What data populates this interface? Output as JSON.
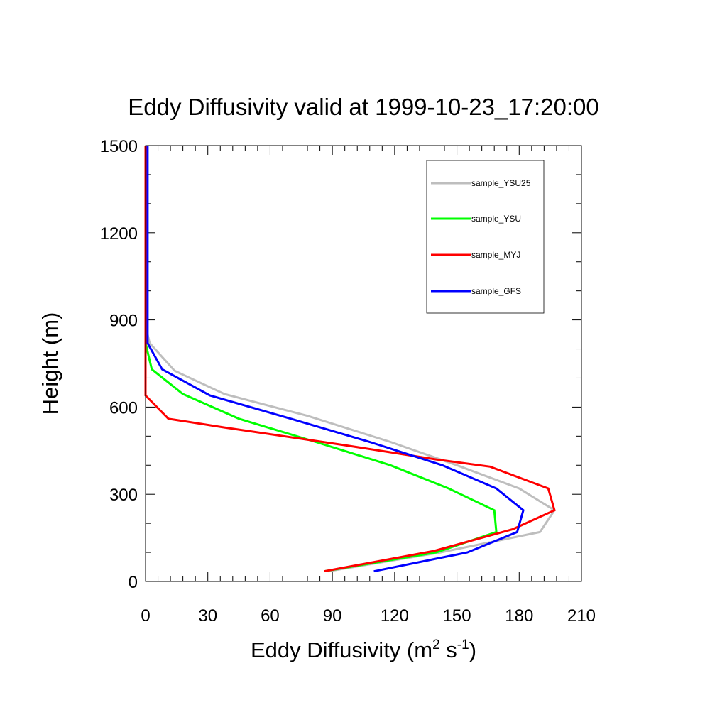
{
  "chart_data": {
    "type": "line",
    "title": "Eddy Diffusivity valid at 1999-10-23_17:20:00",
    "xlabel": {
      "base": "Eddy Diffusivity (m",
      "sup1": "2",
      "mid": " s",
      "sup2": "-1",
      "end": ")"
    },
    "ylabel": "Height (m)",
    "xlim": [
      0,
      210
    ],
    "ylim": [
      0,
      1500
    ],
    "xticks": [
      0,
      30,
      60,
      90,
      120,
      150,
      180,
      210
    ],
    "xtick_labels": [
      "0",
      "30",
      "60",
      "90",
      "120",
      "150",
      "180",
      "210"
    ],
    "yticks": [
      0,
      300,
      600,
      900,
      1200,
      1500
    ],
    "ytick_labels": [
      "0",
      "300",
      "600",
      "900",
      "1200",
      "1500"
    ],
    "grid": false,
    "legend_position": "top-right",
    "series": [
      {
        "name": "sample_YSU25",
        "color": "#bebebe",
        "points": [
          [
            88,
            35
          ],
          [
            142,
            100
          ],
          [
            190,
            170
          ],
          [
            197,
            245
          ],
          [
            180,
            320
          ],
          [
            150,
            400
          ],
          [
            118,
            480
          ],
          [
            78,
            570
          ],
          [
            38,
            645
          ],
          [
            14,
            725
          ],
          [
            2,
            820
          ],
          [
            0,
            880
          ],
          [
            0,
            950
          ],
          [
            0,
            1050
          ],
          [
            0,
            1200
          ],
          [
            0,
            1350
          ],
          [
            0,
            1500
          ]
        ]
      },
      {
        "name": "sample_YSU",
        "color": "#00ff00",
        "points": [
          [
            86,
            35
          ],
          [
            140,
            100
          ],
          [
            169,
            170
          ],
          [
            168,
            245
          ],
          [
            146,
            320
          ],
          [
            118,
            400
          ],
          [
            82,
            480
          ],
          [
            45,
            560
          ],
          [
            18,
            645
          ],
          [
            3,
            730
          ],
          [
            0,
            820
          ],
          [
            0,
            880
          ],
          [
            0,
            950
          ],
          [
            0,
            1050
          ],
          [
            0,
            1200
          ],
          [
            0,
            1350
          ],
          [
            0,
            1500
          ]
        ]
      },
      {
        "name": "sample_MYJ",
        "color": "#ff0000",
        "points": [
          [
            86,
            35
          ],
          [
            139,
            105
          ],
          [
            177,
            180
          ],
          [
            197,
            245
          ],
          [
            194,
            320
          ],
          [
            166,
            395
          ],
          [
            140,
            420
          ],
          [
            95,
            470
          ],
          [
            38,
            530
          ],
          [
            11,
            560
          ],
          [
            0,
            640
          ],
          [
            0,
            720
          ],
          [
            0,
            900
          ],
          [
            0,
            1050
          ],
          [
            0,
            1200
          ],
          [
            0,
            1350
          ],
          [
            0,
            1500
          ]
        ]
      },
      {
        "name": "sample_GFS",
        "color": "#0000ff",
        "points": [
          [
            110,
            35
          ],
          [
            155,
            100
          ],
          [
            179,
            170
          ],
          [
            182,
            245
          ],
          [
            169,
            320
          ],
          [
            143,
            400
          ],
          [
            108,
            480
          ],
          [
            70,
            560
          ],
          [
            31,
            640
          ],
          [
            8,
            730
          ],
          [
            1,
            820
          ],
          [
            1,
            880
          ],
          [
            1,
            950
          ],
          [
            1,
            1050
          ],
          [
            1,
            1200
          ],
          [
            1,
            1350
          ],
          [
            1,
            1500
          ]
        ]
      }
    ]
  }
}
